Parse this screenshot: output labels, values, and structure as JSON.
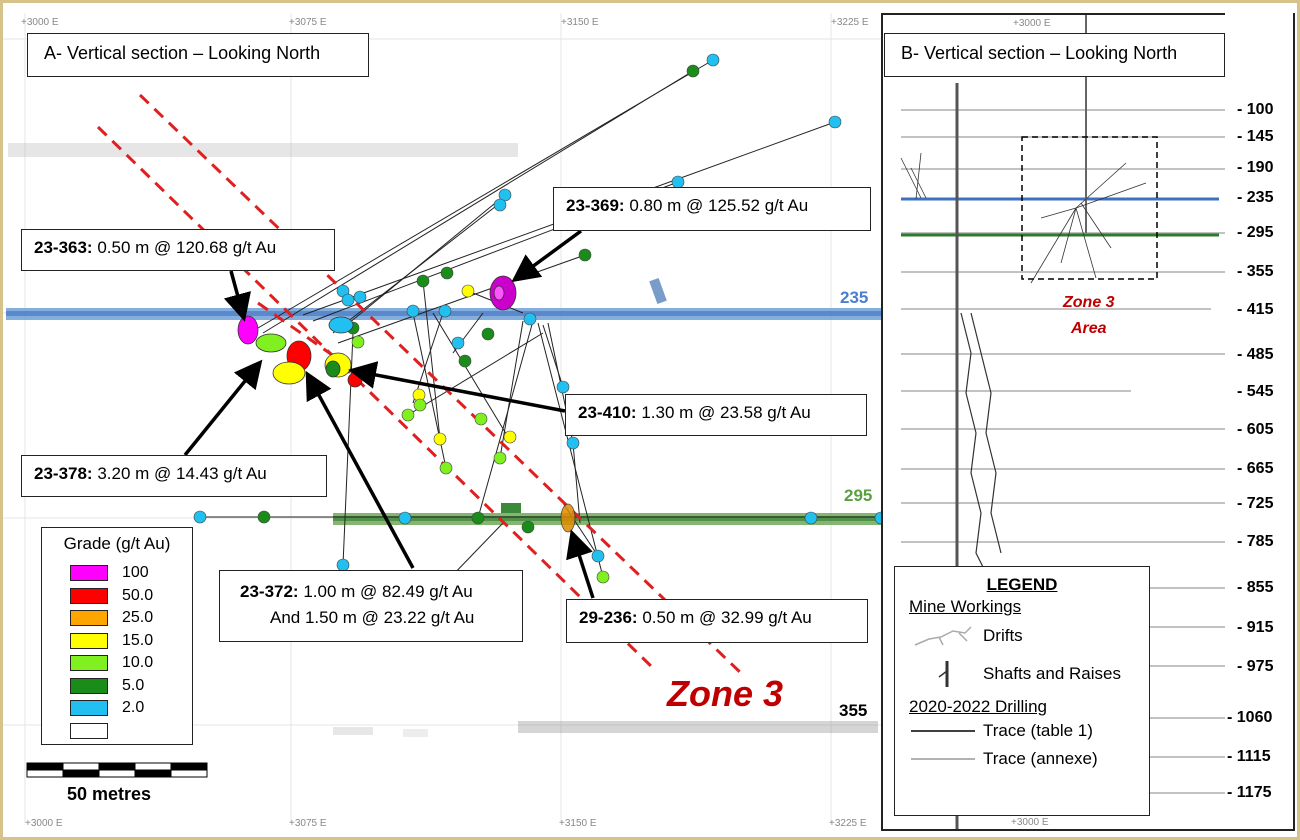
{
  "panel_a": {
    "title": "A- Vertical section – Looking North",
    "easting_labels_top": [
      "+3000 E",
      "+3075 E",
      "+3150 E",
      "+3225 E"
    ],
    "easting_labels_bottom": [
      "+3000 E",
      "+3075 E",
      "+3150 E",
      "+3225 E"
    ],
    "level_labels": {
      "l235": "235",
      "l295": "295",
      "l355": "355"
    },
    "zone_label": "Zone 3",
    "annotations": [
      {
        "hole": "23-363:",
        "text": " 0.50 m @ 120.68 g/t Au"
      },
      {
        "hole": "23-369:",
        "text": " 0.80 m @ 125.52 g/t Au"
      },
      {
        "hole": "23-410:",
        "text": " 1.30 m @ 23.58 g/t Au"
      },
      {
        "hole": "23-378:",
        "text": " 3.20 m @ 14.43 g/t Au"
      },
      {
        "hole": "23-372:",
        "text": " 1.00 m @ 82.49 g/t Au",
        "line2": "And 1.50 m @ 23.22 g/t Au"
      },
      {
        "hole": "29-236:",
        "text": " 0.50 m @ 32.99 g/t Au"
      }
    ],
    "scale_bar": "50 metres"
  },
  "grade_legend": {
    "title": "Grade (g/t Au)",
    "items": [
      {
        "label": "100",
        "color": "#ff00ff"
      },
      {
        "label": "50.0",
        "color": "#ff0000"
      },
      {
        "label": "25.0",
        "color": "#ffa500"
      },
      {
        "label": "15.0",
        "color": "#ffff00"
      },
      {
        "label": "10.0",
        "color": "#80f020"
      },
      {
        "label": "5.0",
        "color": "#1a8c1a"
      },
      {
        "label": "2.0",
        "color": "#22c0f0"
      },
      {
        "label": "",
        "color": "#ffffff"
      }
    ]
  },
  "panel_b": {
    "title": "B- Vertical section – Looking North",
    "easting_label_top": "+3000 E",
    "easting_label_bottom": "+3000 E",
    "depth_labels": [
      "- 100",
      "- 145",
      "- 190",
      "- 235",
      "- 295",
      "- 355",
      "- 415",
      "- 485",
      "- 545",
      "- 605",
      "- 665",
      "- 725",
      "- 785",
      "- 855",
      "- 915",
      "- 975",
      "- 1060",
      "- 1115",
      "- 1175"
    ],
    "zone_label_line1": "Zone 3",
    "zone_label_line2": "Area"
  },
  "legend": {
    "title": "LEGEND",
    "mine_workings": "Mine Workings",
    "drifts": "Drifts",
    "shafts": "Shafts and Raises",
    "drilling": "2020-2022 Drilling",
    "trace_table": "Trace (table 1)",
    "trace_annexe": "Trace (annexe)"
  },
  "colors": {
    "level_235": "#4a7fd0",
    "level_295": "#5aa040",
    "zone_dash": "#e02020",
    "zone_text": "#c00000",
    "frame": "#d6c38a"
  }
}
